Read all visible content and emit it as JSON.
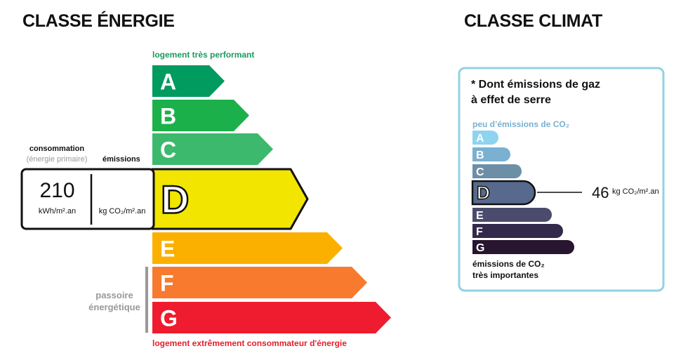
{
  "energy": {
    "title": "CLASSE ÉNERGIE",
    "top_label": "logement très performant",
    "bottom_label": "logement extrêmement consommateur d'énergie",
    "passoire_line1": "passoire",
    "passoire_line2": "énergétique",
    "consumption_label": "consommation",
    "consumption_sub": "(énergie primaire)",
    "emissions_label": "émissions",
    "consumption_value": "210",
    "consumption_unit": "kWh/m².an",
    "emissions_unit": "kg CO₂/m².an",
    "current_class": "D",
    "classes": [
      {
        "letter": "A",
        "color": "#019a5f"
      },
      {
        "letter": "B",
        "color": "#1cb04b"
      },
      {
        "letter": "C",
        "color": "#3cb96c"
      },
      {
        "letter": "D",
        "color": "#f2e600"
      },
      {
        "letter": "E",
        "color": "#fbb000"
      },
      {
        "letter": "F",
        "color": "#f77a2e"
      },
      {
        "letter": "G",
        "color": "#ee1c2e"
      }
    ]
  },
  "climate": {
    "title": "CLASSE CLIMAT",
    "note_line1": "* Dont émissions de gaz",
    "note_line2": "à effet de serre",
    "top_label": "peu d’émissions de CO₂",
    "bottom_line1": "émissions de CO₂",
    "bottom_line2": "très importantes",
    "value": "46",
    "unit": "kg CO₂/m².an",
    "current_class": "D",
    "border_color": "#8fd3e3",
    "classes": [
      {
        "letter": "A",
        "color": "#8dd4f0"
      },
      {
        "letter": "B",
        "color": "#7ab0d0"
      },
      {
        "letter": "C",
        "color": "#6d8ea7"
      },
      {
        "letter": "D",
        "color": "#576a8d"
      },
      {
        "letter": "E",
        "color": "#4b4b6e"
      },
      {
        "letter": "F",
        "color": "#33294a"
      },
      {
        "letter": "G",
        "color": "#281530"
      }
    ]
  }
}
